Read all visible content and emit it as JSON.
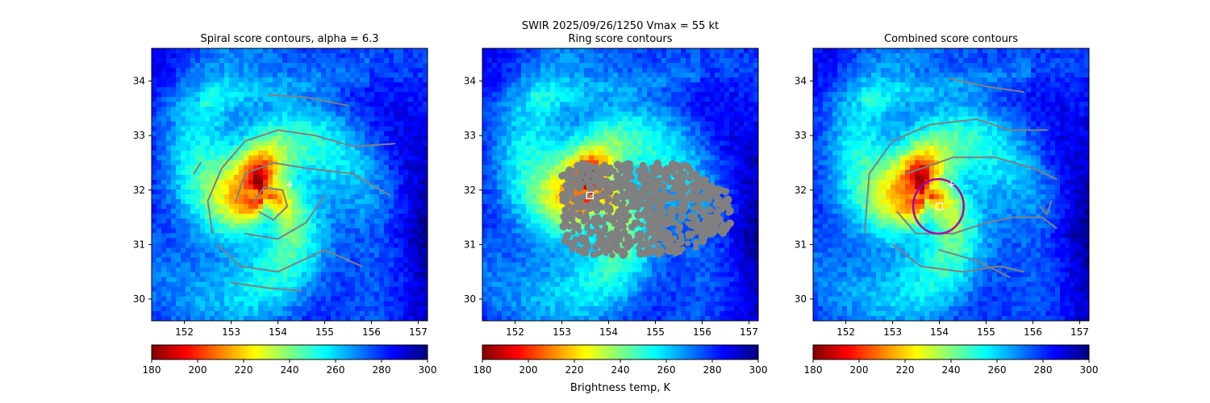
{
  "suptitle": {
    "line1": "SWIR  2025/09/26/1250    Vmax = 55 kt",
    "line2": "Ring score contours"
  },
  "colorbar": {
    "label": "Brightness temp, K",
    "ticks": [
      180,
      200,
      220,
      240,
      260,
      280,
      300
    ],
    "range": [
      180,
      300
    ],
    "colormap": "jet_r",
    "colors": [
      "#800000",
      "#ff0000",
      "#ff8000",
      "#ffff00",
      "#80ff80",
      "#00ffff",
      "#0080ff",
      "#0000ff",
      "#000080"
    ]
  },
  "contour_color": "#808080",
  "chart_data": [
    {
      "type": "heatmap",
      "title": "Spiral score contours, alpha =  6.3",
      "xlim": [
        151.3,
        157.2
      ],
      "ylim": [
        29.6,
        34.6
      ],
      "xticks": [
        152,
        153,
        154,
        155,
        156,
        157
      ],
      "yticks": [
        30,
        31,
        32,
        33,
        34
      ],
      "center_marker": {
        "symbol": "+",
        "lon": 154.25,
        "lat": 32.1,
        "color": "#ffffff"
      },
      "cold_core": {
        "lon": 153.5,
        "lat": 32.1,
        "tb_min": 185
      },
      "contours": [
        [
          [
            152.6,
            31.2
          ],
          [
            152.5,
            31.8
          ],
          [
            152.8,
            32.4
          ],
          [
            153.3,
            32.9
          ],
          [
            154.0,
            33.1
          ],
          [
            154.8,
            33.0
          ],
          [
            155.6,
            32.8
          ],
          [
            156.5,
            32.85
          ]
        ],
        [
          [
            152.7,
            31.0
          ],
          [
            153.2,
            30.6
          ],
          [
            154.0,
            30.5
          ],
          [
            155.0,
            30.9
          ],
          [
            155.8,
            30.6
          ]
        ],
        [
          [
            153.1,
            31.8
          ],
          [
            153.3,
            32.3
          ],
          [
            153.9,
            32.5
          ],
          [
            154.6,
            32.4
          ],
          [
            155.6,
            32.3
          ],
          [
            156.4,
            31.9
          ]
        ],
        [
          [
            153.5,
            31.8
          ],
          [
            153.7,
            32.05
          ],
          [
            154.1,
            32.0
          ],
          [
            154.2,
            31.7
          ],
          [
            153.9,
            31.45
          ],
          [
            153.6,
            31.6
          ]
        ],
        [
          [
            153.3,
            31.2
          ],
          [
            154.0,
            31.1
          ],
          [
            154.6,
            31.4
          ],
          [
            155.0,
            31.9
          ]
        ],
        [
          [
            153.0,
            30.3
          ],
          [
            153.8,
            30.2
          ],
          [
            154.5,
            30.15
          ]
        ],
        [
          [
            153.8,
            33.75
          ],
          [
            154.6,
            33.7
          ],
          [
            155.5,
            33.55
          ]
        ],
        [
          [
            152.2,
            32.3
          ],
          [
            152.35,
            32.5
          ]
        ]
      ]
    },
    {
      "type": "heatmap",
      "title": "Ring score contours",
      "xlim": [
        151.3,
        157.2
      ],
      "ylim": [
        29.6,
        34.6
      ],
      "xticks": [
        152,
        153,
        154,
        155,
        156,
        157
      ],
      "yticks": [
        30,
        31,
        32,
        33,
        34
      ],
      "center_marker": {
        "symbol": "square",
        "lon": 153.6,
        "lat": 31.9,
        "color": "#ffffff"
      },
      "cold_core": {
        "lon": 153.5,
        "lat": 32.1,
        "tb_min": 185
      },
      "ring_region": {
        "lon_min": 153.0,
        "lon_max": 156.6,
        "lat_min": 30.8,
        "lat_max": 32.5
      }
    },
    {
      "type": "heatmap",
      "title": "Combined score contours",
      "xlim": [
        151.3,
        157.2
      ],
      "ylim": [
        29.6,
        34.6
      ],
      "xticks": [
        152,
        153,
        154,
        155,
        156,
        157
      ],
      "yticks": [
        30,
        31,
        32,
        33,
        34
      ],
      "center_marker": {
        "symbol": "+",
        "lon": 154.25,
        "lat": 32.1,
        "color": "#ffffff"
      },
      "square_marker": {
        "lon": 154.0,
        "lat": 31.7,
        "color": "#ffffff"
      },
      "ring": {
        "lon": 153.98,
        "lat": 31.7,
        "radius_deg": 0.5,
        "color": "#aa00aa"
      },
      "cold_core": {
        "lon": 153.5,
        "lat": 32.1,
        "tb_min": 185
      },
      "contours": [
        [
          [
            152.4,
            31.2
          ],
          [
            152.5,
            32.3
          ],
          [
            153.0,
            32.9
          ],
          [
            153.8,
            33.2
          ],
          [
            154.8,
            33.3
          ],
          [
            155.5,
            33.1
          ],
          [
            156.3,
            33.1
          ]
        ],
        [
          [
            153.0,
            31.0
          ],
          [
            153.6,
            30.6
          ],
          [
            154.5,
            30.5
          ],
          [
            155.3,
            30.6
          ],
          [
            155.8,
            30.5
          ]
        ],
        [
          [
            153.3,
            32.3
          ],
          [
            154.3,
            32.6
          ],
          [
            155.2,
            32.6
          ],
          [
            156.0,
            32.4
          ],
          [
            156.5,
            32.2
          ]
        ],
        [
          [
            153.1,
            31.6
          ],
          [
            153.5,
            31.2
          ],
          [
            154.3,
            31.2
          ],
          [
            155.0,
            31.4
          ],
          [
            155.6,
            31.5
          ],
          [
            156.2,
            31.5
          ],
          [
            156.5,
            31.3
          ]
        ],
        [
          [
            154.0,
            30.9
          ],
          [
            154.8,
            30.7
          ],
          [
            155.5,
            30.4
          ]
        ],
        [
          [
            154.2,
            34.05
          ],
          [
            155.0,
            33.9
          ],
          [
            155.8,
            33.8
          ]
        ],
        [
          [
            156.15,
            31.7
          ],
          [
            156.3,
            31.55
          ],
          [
            156.4,
            31.8
          ]
        ]
      ]
    }
  ]
}
